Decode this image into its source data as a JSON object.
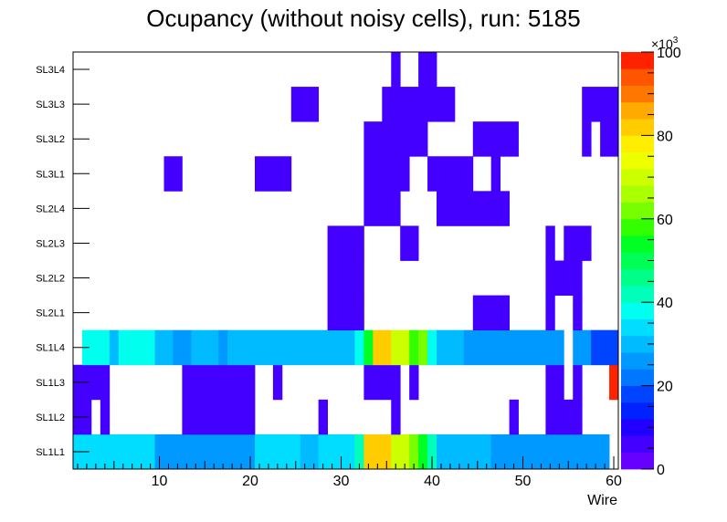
{
  "chart_data": {
    "type": "heatmap",
    "title": "Ocupancy (without noisy cells), run: 5185",
    "xlabel": "Wire",
    "xlim": [
      0.5,
      60.5
    ],
    "xticks": [
      10,
      20,
      30,
      40,
      50,
      60
    ],
    "rows": [
      "SL1L1",
      "SL1L2",
      "SL1L3",
      "SL1L4",
      "SL2L1",
      "SL2L2",
      "SL2L3",
      "SL2L4",
      "SL3L1",
      "SL3L2",
      "SL3L3",
      "SL3L4"
    ],
    "zlim": [
      0,
      100
    ],
    "zticks": [
      0,
      20,
      40,
      60,
      80,
      100
    ],
    "z_exponent": "×10³",
    "z_exponent_base": "×10",
    "z_exponent_power": "3",
    "cells": {
      "SL1L1": [
        [
          1,
          9,
          34
        ],
        [
          10,
          20,
          25
        ],
        [
          21,
          25,
          34
        ],
        [
          26,
          27,
          28
        ],
        [
          28,
          31,
          34
        ],
        [
          32,
          32,
          40
        ],
        [
          33,
          35,
          80
        ],
        [
          36,
          37,
          70
        ],
        [
          38,
          38,
          62
        ],
        [
          39,
          39,
          52
        ],
        [
          40,
          40,
          40
        ],
        [
          41,
          46,
          30
        ],
        [
          47,
          59,
          24
        ]
      ],
      "SL1L2": [
        [
          1,
          2,
          5
        ],
        [
          4,
          4,
          5
        ],
        [
          13,
          20,
          5
        ],
        [
          28,
          28,
          5
        ],
        [
          36,
          36,
          5
        ],
        [
          49,
          49,
          5
        ],
        [
          53,
          56,
          5
        ]
      ],
      "SL1L3": [
        [
          1,
          4,
          5
        ],
        [
          13,
          20,
          5
        ],
        [
          23,
          23,
          5
        ],
        [
          33,
          36,
          5
        ],
        [
          38,
          38,
          5
        ],
        [
          53,
          54,
          5
        ],
        [
          56,
          56,
          5
        ],
        [
          60,
          60,
          98
        ]
      ],
      "SL1L4": [
        [
          2,
          4,
          36
        ],
        [
          5,
          5,
          30
        ],
        [
          6,
          9,
          36
        ],
        [
          10,
          11,
          30
        ],
        [
          12,
          13,
          25
        ],
        [
          14,
          16,
          30
        ],
        [
          17,
          17,
          25
        ],
        [
          18,
          31,
          30
        ],
        [
          32,
          32,
          36
        ],
        [
          33,
          33,
          52
        ],
        [
          34,
          35,
          80
        ],
        [
          36,
          37,
          70
        ],
        [
          38,
          38,
          58
        ],
        [
          39,
          39,
          62
        ],
        [
          40,
          40,
          36
        ],
        [
          41,
          43,
          30
        ],
        [
          44,
          54,
          24
        ],
        [
          56,
          57,
          24
        ],
        [
          58,
          60,
          18
        ]
      ],
      "SL2L1": [
        [
          29,
          32,
          5
        ],
        [
          45,
          48,
          5
        ],
        [
          53,
          53,
          5
        ],
        [
          56,
          56,
          5
        ]
      ],
      "SL2L2": [
        [
          29,
          32,
          5
        ],
        [
          53,
          56,
          5
        ]
      ],
      "SL2L3": [
        [
          29,
          32,
          5
        ],
        [
          37,
          38,
          5
        ],
        [
          53,
          53,
          5
        ],
        [
          55,
          57,
          5
        ]
      ],
      "SL2L4": [
        [
          33,
          36,
          5
        ],
        [
          41,
          48,
          5
        ]
      ],
      "SL3L1": [
        [
          11,
          12,
          5
        ],
        [
          21,
          24,
          5
        ],
        [
          33,
          37,
          5
        ],
        [
          40,
          44,
          5
        ],
        [
          47,
          47,
          5
        ]
      ],
      "SL3L2": [
        [
          33,
          39,
          5
        ],
        [
          45,
          49,
          5
        ],
        [
          57,
          57,
          5
        ],
        [
          59,
          60,
          5
        ]
      ],
      "SL3L3": [
        [
          25,
          27,
          5
        ],
        [
          35,
          42,
          5
        ],
        [
          57,
          60,
          5
        ]
      ],
      "SL3L4": [
        [
          36,
          36,
          5
        ],
        [
          39,
          40,
          5
        ]
      ]
    }
  }
}
